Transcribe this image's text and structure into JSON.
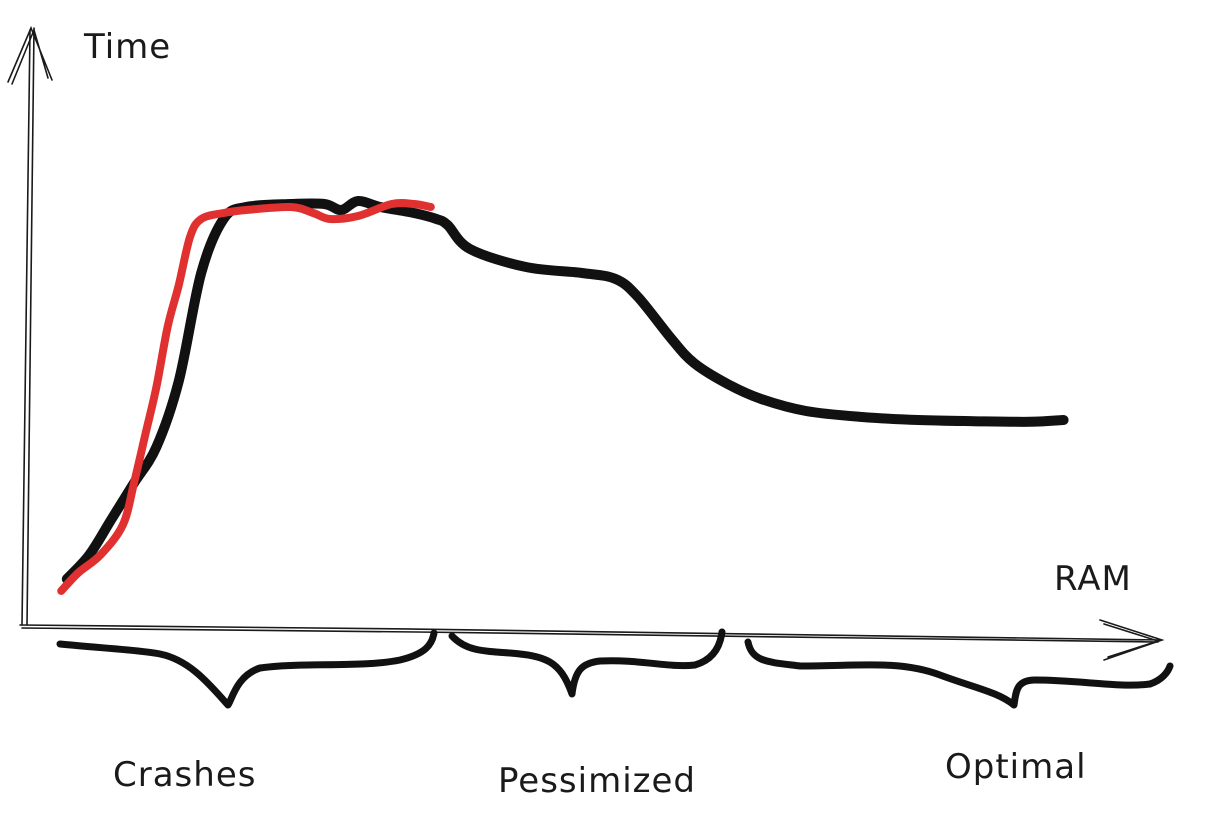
{
  "chart_data": {
    "type": "line",
    "xlabel": "RAM",
    "ylabel": "Time",
    "grid": false,
    "xlim": [
      0,
      100
    ],
    "ylim": [
      0,
      100
    ],
    "regions": [
      {
        "label": "Crashes",
        "x_range": [
          3,
          37
        ]
      },
      {
        "label": "Pessimized",
        "x_range": [
          38,
          62
        ]
      },
      {
        "label": "Optimal",
        "x_range": [
          64,
          100
        ]
      }
    ],
    "series": [
      {
        "color": "#111111",
        "x": [
          4,
          6,
          8,
          10,
          12,
          14,
          16,
          18,
          20,
          24,
          27,
          28.5,
          30,
          32,
          35,
          37,
          38,
          40,
          45,
          50,
          53,
          55,
          58,
          60,
          63,
          66,
          70,
          75,
          80,
          85,
          90,
          93
        ],
        "y": [
          6,
          10,
          16,
          22,
          28,
          39,
          57,
          66,
          68,
          68.5,
          68.5,
          67.5,
          69,
          68,
          67,
          66,
          65,
          61,
          58,
          57,
          56,
          53,
          46,
          42,
          38.5,
          36,
          34,
          33,
          32.5,
          32.3,
          32.2,
          32.5
        ]
      },
      {
        "color": "#e03030",
        "x": [
          3.5,
          5,
          7,
          9,
          10,
          11,
          12,
          13,
          14,
          15,
          16,
          18,
          20,
          24,
          26,
          27.5,
          30,
          33,
          35,
          36.5
        ],
        "y": [
          4,
          7,
          10,
          15,
          22,
          30,
          38,
          48,
          55,
          63,
          66,
          67,
          67.5,
          68,
          67,
          66,
          66.5,
          68.5,
          68.5,
          68
        ]
      }
    ]
  }
}
